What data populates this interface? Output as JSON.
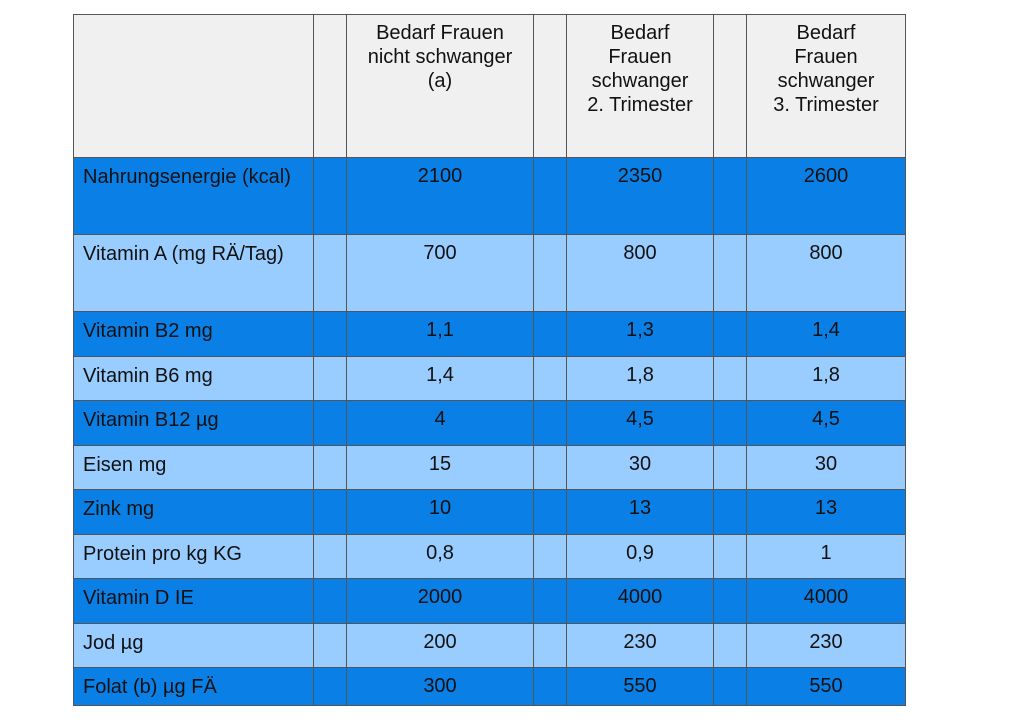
{
  "table": {
    "headers": [
      "",
      "Bedarf Frauen nicht schwanger (a)",
      "Bedarf Frauen schwanger 2. Trimester",
      "Bedarf Frauen schwanger 3. Trimester"
    ],
    "header_lines": [
      [],
      [
        "Bedarf Frauen",
        "nicht schwanger",
        "(a)"
      ],
      [
        "Bedarf",
        "Frauen",
        "schwanger",
        "2. Trimester"
      ],
      [
        "Bedarf",
        "Frauen",
        "schwanger",
        "3. Trimester"
      ]
    ],
    "rows": [
      {
        "label": "Nahrungsenergie (kcal)",
        "values": [
          "2100",
          "2350",
          "2600"
        ]
      },
      {
        "label": "Vitamin A (mg RÄ/Tag)",
        "values": [
          "700",
          "800",
          "800"
        ]
      },
      {
        "label": "Vitamin B2 mg",
        "values": [
          "1,1",
          "1,3",
          "1,4"
        ]
      },
      {
        "label": "Vitamin B6 mg",
        "values": [
          "1,4",
          "1,8",
          "1,8"
        ]
      },
      {
        "label": "Vitamin B12 µg",
        "values": [
          "4",
          "4,5",
          "4,5"
        ]
      },
      {
        "label": "Eisen mg",
        "values": [
          "15",
          "30",
          "30"
        ]
      },
      {
        "label": "Zink mg",
        "values": [
          "10",
          "13",
          "13"
        ]
      },
      {
        "label": "Protein pro kg KG",
        "values": [
          "0,8",
          "0,9",
          "1"
        ]
      },
      {
        "label": "Vitamin D IE",
        "values": [
          "2000",
          "4000",
          "4000"
        ]
      },
      {
        "label": "Jod µg",
        "values": [
          "200",
          "230",
          "230"
        ]
      },
      {
        "label": "Folat (b) µg FÄ",
        "values": [
          "300",
          "550",
          "550"
        ]
      }
    ],
    "colors": {
      "dark_row": "#0a7fe6",
      "light_row": "#9acdff",
      "header": "#f0f0f0",
      "border": "#555555"
    }
  }
}
